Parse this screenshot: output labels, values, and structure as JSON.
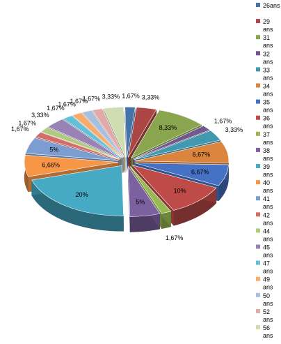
{
  "chart_data": {
    "type": "pie",
    "style": "3d-exploded",
    "legend_position": "right",
    "title": "",
    "slices": [
      {
        "label": "26ans",
        "value": 1.67,
        "display": "1,67%",
        "color": "#4572A7"
      },
      {
        "label": "29 ans",
        "value": 3.33,
        "display": "3,33%",
        "color": "#AA4643"
      },
      {
        "label": "31 ans",
        "value": 8.33,
        "display": "8,33%",
        "color": "#89A54E"
      },
      {
        "label": "32 ans",
        "value": 1.67,
        "display": "1,67%",
        "color": "#71588F"
      },
      {
        "label": "33 ans",
        "value": 3.33,
        "display": "3,33%",
        "color": "#4198AF"
      },
      {
        "label": "34 ans",
        "value": 6.67,
        "display": "6,67%",
        "color": "#DB843D"
      },
      {
        "label": "35 ans",
        "value": 6.67,
        "display": "6,67%",
        "color": "#4572C4"
      },
      {
        "label": "36 ans",
        "value": 10,
        "display": "10%",
        "color": "#BE4B48"
      },
      {
        "label": "37 ans",
        "value": 1.67,
        "display": "1,67%",
        "color": "#98B954"
      },
      {
        "label": "38 ans",
        "value": 5,
        "display": "5%",
        "color": "#7D60A0"
      },
      {
        "label": "39 ans",
        "value": 20,
        "display": "20%",
        "color": "#46AAC5"
      },
      {
        "label": "40 ans",
        "value": 6.66,
        "display": "6,66%",
        "color": "#F79646"
      },
      {
        "label": "41 ans",
        "value": 5,
        "display": "5%",
        "color": "#7C9DD0"
      },
      {
        "label": "42 ans",
        "value": 1.67,
        "display": "1,67%",
        "color": "#D46D6A"
      },
      {
        "label": "44 ans",
        "value": 1.67,
        "display": "1,67%",
        "color": "#B1CB7E"
      },
      {
        "label": "45 ans",
        "value": 3.33,
        "display": "3,33%",
        "color": "#9983B5"
      },
      {
        "label": "47 ans",
        "value": 1.67,
        "display": "1,67%",
        "color": "#64C0D8"
      },
      {
        "label": "49 ans",
        "value": 1.67,
        "display": "1,67%",
        "color": "#F9AB6B"
      },
      {
        "label": "50 ans",
        "value": 1.67,
        "display": "1,67%",
        "color": "#A7C0DE"
      },
      {
        "label": "52 ans",
        "value": 1.67,
        "display": "1,67%",
        "color": "#E3A9A8"
      },
      {
        "label": "56 ans",
        "value": 3.33,
        "display": "3,33%",
        "color": "#D0DDB2"
      }
    ]
  }
}
